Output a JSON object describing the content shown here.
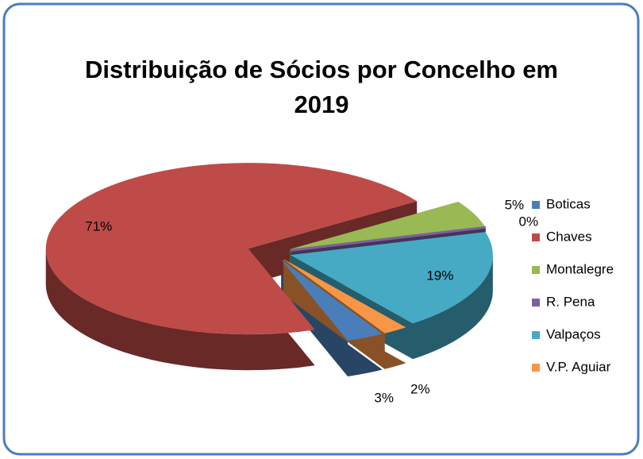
{
  "chart_data": {
    "type": "pie3d",
    "title": "Distribuição de Sócios por Concelho em 2019",
    "categories": [
      "Boticas",
      "Chaves",
      "Montalegre",
      "R. Pena",
      "Valpaços",
      "V.P. Aguiar"
    ],
    "values": [
      3,
      71,
      5,
      0,
      19,
      2
    ],
    "value_labels": [
      "3%",
      "71%",
      "5%",
      "0%",
      "19%",
      "2%"
    ],
    "colors": [
      "#4a7ebb",
      "#be4b48",
      "#98b954",
      "#7d60a0",
      "#46aac5",
      "#f79646"
    ],
    "legend": "right"
  }
}
